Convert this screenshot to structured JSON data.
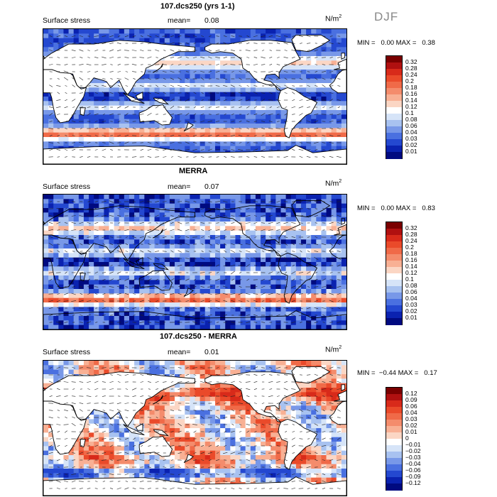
{
  "season": "DJF",
  "panels": [
    {
      "title": "107.dcs250 (yrs 1-1)",
      "variable": "Surface stress",
      "mean_label": "mean=",
      "mean_value": "0.08",
      "units": "N/m",
      "units_exp": "2",
      "min_label": "MIN =",
      "min_value": "0.00",
      "max_label": "MAX =",
      "max_value": "0.38",
      "colorbar_ticks": [
        "0.32",
        "0.28",
        "0.24",
        "0.2",
        "0.18",
        "0.16",
        "0.14",
        "0.12",
        "0.1",
        "0.08",
        "0.06",
        "0.04",
        "0.03",
        "0.02",
        "0.01"
      ]
    },
    {
      "title": "MERRA",
      "variable": "Surface stress",
      "mean_label": "mean=",
      "mean_value": "0.07",
      "units": "N/m",
      "units_exp": "2",
      "min_label": "MIN =",
      "min_value": "0.00",
      "max_label": "MAX =",
      "max_value": "0.83",
      "colorbar_ticks": [
        "0.32",
        "0.28",
        "0.24",
        "0.2",
        "0.18",
        "0.16",
        "0.14",
        "0.12",
        "0.1",
        "0.08",
        "0.06",
        "0.04",
        "0.03",
        "0.02",
        "0.01"
      ]
    },
    {
      "title": "107.dcs250 - MERRA",
      "variable": "Surface stress",
      "mean_label": "mean=",
      "mean_value": "0.01",
      "units": "N/m",
      "units_exp": "2",
      "min_label": "MIN =",
      "min_value": "−0.44",
      "max_label": "MAX =",
      "max_value": "0.17",
      "colorbar_ticks": [
        "0.12",
        "0.09",
        "0.06",
        "0.04",
        "0.03",
        "0.02",
        "0.01",
        "0",
        "−0.01",
        "−0.02",
        "−0.03",
        "−0.04",
        "−0.06",
        "−0.09",
        "−0.12"
      ]
    }
  ],
  "colors": {
    "abs_scale": [
      "#7a0000",
      "#b01010",
      "#d82a1a",
      "#ea4a2a",
      "#f06a48",
      "#f48c6c",
      "#f8b094",
      "#fbd6c4",
      "#ffffff",
      "#d6e4f8",
      "#a8c2f0",
      "#7898e8",
      "#4a70e0",
      "#2448d0",
      "#0a22b0",
      "#000a80"
    ],
    "diff_scale": [
      "#7a0000",
      "#b01010",
      "#d82a1a",
      "#ea4a2a",
      "#f06a48",
      "#f48c6c",
      "#f8b094",
      "#fbd6c4",
      "#ffffff",
      "#d6e4f8",
      "#a8c2f0",
      "#7898e8",
      "#4a70e0",
      "#2448d0",
      "#0a22b0",
      "#000a80"
    ]
  },
  "chart_data": [
    {
      "type": "heatmap",
      "title": "107.dcs250 (yrs 1-1)",
      "field": "Surface stress",
      "units": "N/m^2",
      "mean": 0.08,
      "min": 0.0,
      "max": 0.38,
      "colorbar_levels": [
        0.32,
        0.28,
        0.24,
        0.2,
        0.18,
        0.16,
        0.14,
        0.12,
        0.1,
        0.08,
        0.06,
        0.04,
        0.03,
        0.02,
        0.01
      ],
      "vectors": true
    },
    {
      "type": "heatmap",
      "title": "MERRA",
      "field": "Surface stress",
      "units": "N/m^2",
      "mean": 0.07,
      "min": 0.0,
      "max": 0.83,
      "colorbar_levels": [
        0.32,
        0.28,
        0.24,
        0.2,
        0.18,
        0.16,
        0.14,
        0.12,
        0.1,
        0.08,
        0.06,
        0.04,
        0.03,
        0.02,
        0.01
      ],
      "vectors": true
    },
    {
      "type": "heatmap",
      "title": "107.dcs250 - MERRA",
      "field": "Surface stress",
      "units": "N/m^2",
      "mean": 0.01,
      "min": -0.44,
      "max": 0.17,
      "colorbar_levels": [
        0.12,
        0.09,
        0.06,
        0.04,
        0.03,
        0.02,
        0.01,
        0,
        -0.01,
        -0.02,
        -0.03,
        -0.04,
        -0.06,
        -0.09,
        -0.12
      ],
      "vectors": true
    }
  ]
}
